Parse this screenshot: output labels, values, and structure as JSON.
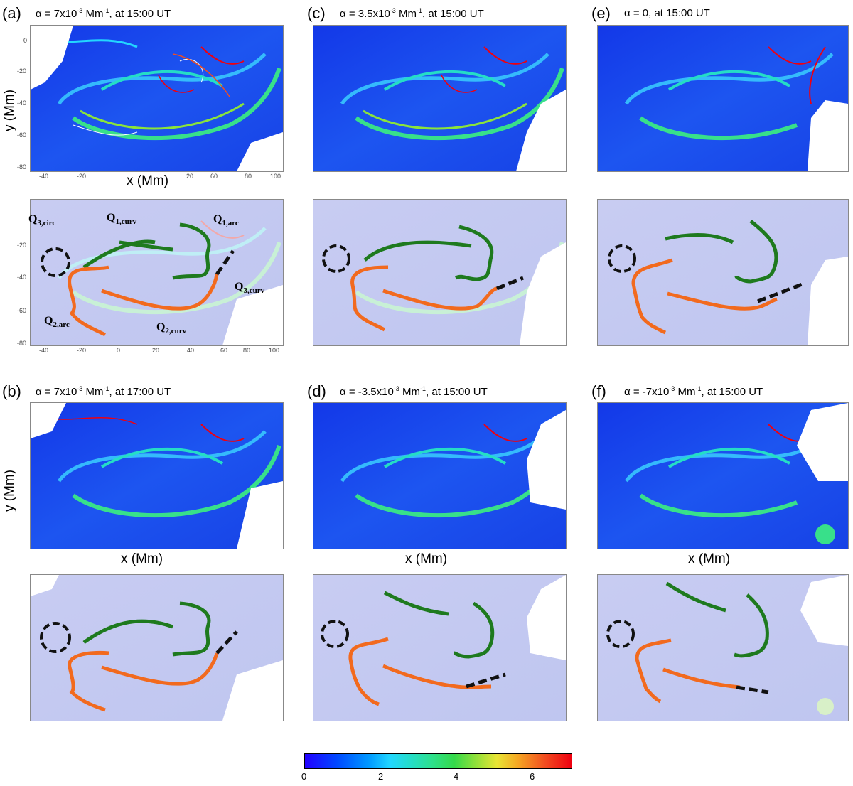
{
  "figure": {
    "panels": [
      {
        "id": "a",
        "label": "(a)",
        "alpha_text": "α = 7x10",
        "exponent": "-3",
        "unit": " Mm",
        "unit_exp": "-1",
        "time_text": ", at 15:00 UT"
      },
      {
        "id": "b",
        "label": "(b)",
        "alpha_text": "α = 7x10",
        "exponent": "-3",
        "unit": " Mm",
        "unit_exp": "-1",
        "time_text": ", at 17:00 UT"
      },
      {
        "id": "c",
        "label": "(c)",
        "alpha_text": "α = 3.5x10",
        "exponent": "-3",
        "unit": " Mm",
        "unit_exp": "-1",
        "time_text": ", at 15:00 UT"
      },
      {
        "id": "d",
        "label": "(d)",
        "alpha_text": "α = -3.5x10",
        "exponent": "-3",
        "unit": " Mm",
        "unit_exp": "-1",
        "time_text": ", at 15:00 UT"
      },
      {
        "id": "e",
        "label": "(e)",
        "alpha_text": "α = 0",
        "exponent": "",
        "unit": "",
        "unit_exp": "",
        "time_text": ", at 15:00 UT"
      },
      {
        "id": "f",
        "label": "(f)",
        "alpha_text": "α = -7x10",
        "exponent": "-3",
        "unit": " Mm",
        "unit_exp": "-1",
        "time_text": ", at 15:00 UT"
      }
    ],
    "x_axis_label": "x (Mm)",
    "y_axis_label": "y (Mm)",
    "x_ticks": [
      "-40",
      "-20",
      "0",
      "20",
      "40",
      "60",
      "80",
      "100"
    ],
    "y_ticks": [
      "0",
      "-20",
      "-40",
      "-60",
      "-80"
    ],
    "annotations": {
      "q1_curv": {
        "main": "Q",
        "sub": "1,curv"
      },
      "q1_arc": {
        "main": "Q",
        "sub": "1,arc"
      },
      "q2_arc": {
        "main": "Q",
        "sub": "2,arc"
      },
      "q2_curv": {
        "main": "Q",
        "sub": "2,curv"
      },
      "q3_circ": {
        "main": "Q",
        "sub": "3,circ"
      },
      "q3_curv": {
        "main": "Q",
        "sub": "3,curv"
      }
    },
    "colorbar": {
      "ticks": [
        "0",
        "2",
        "4",
        "6"
      ],
      "colormap": "rainbow",
      "colors": {
        "low": "#2200ff",
        "mid": "#2ee08a",
        "high": "#ee0010"
      }
    },
    "overlay_colors": {
      "q1": "#1e7a1e",
      "q2": "#f26a1e",
      "q3": "#111111"
    }
  }
}
